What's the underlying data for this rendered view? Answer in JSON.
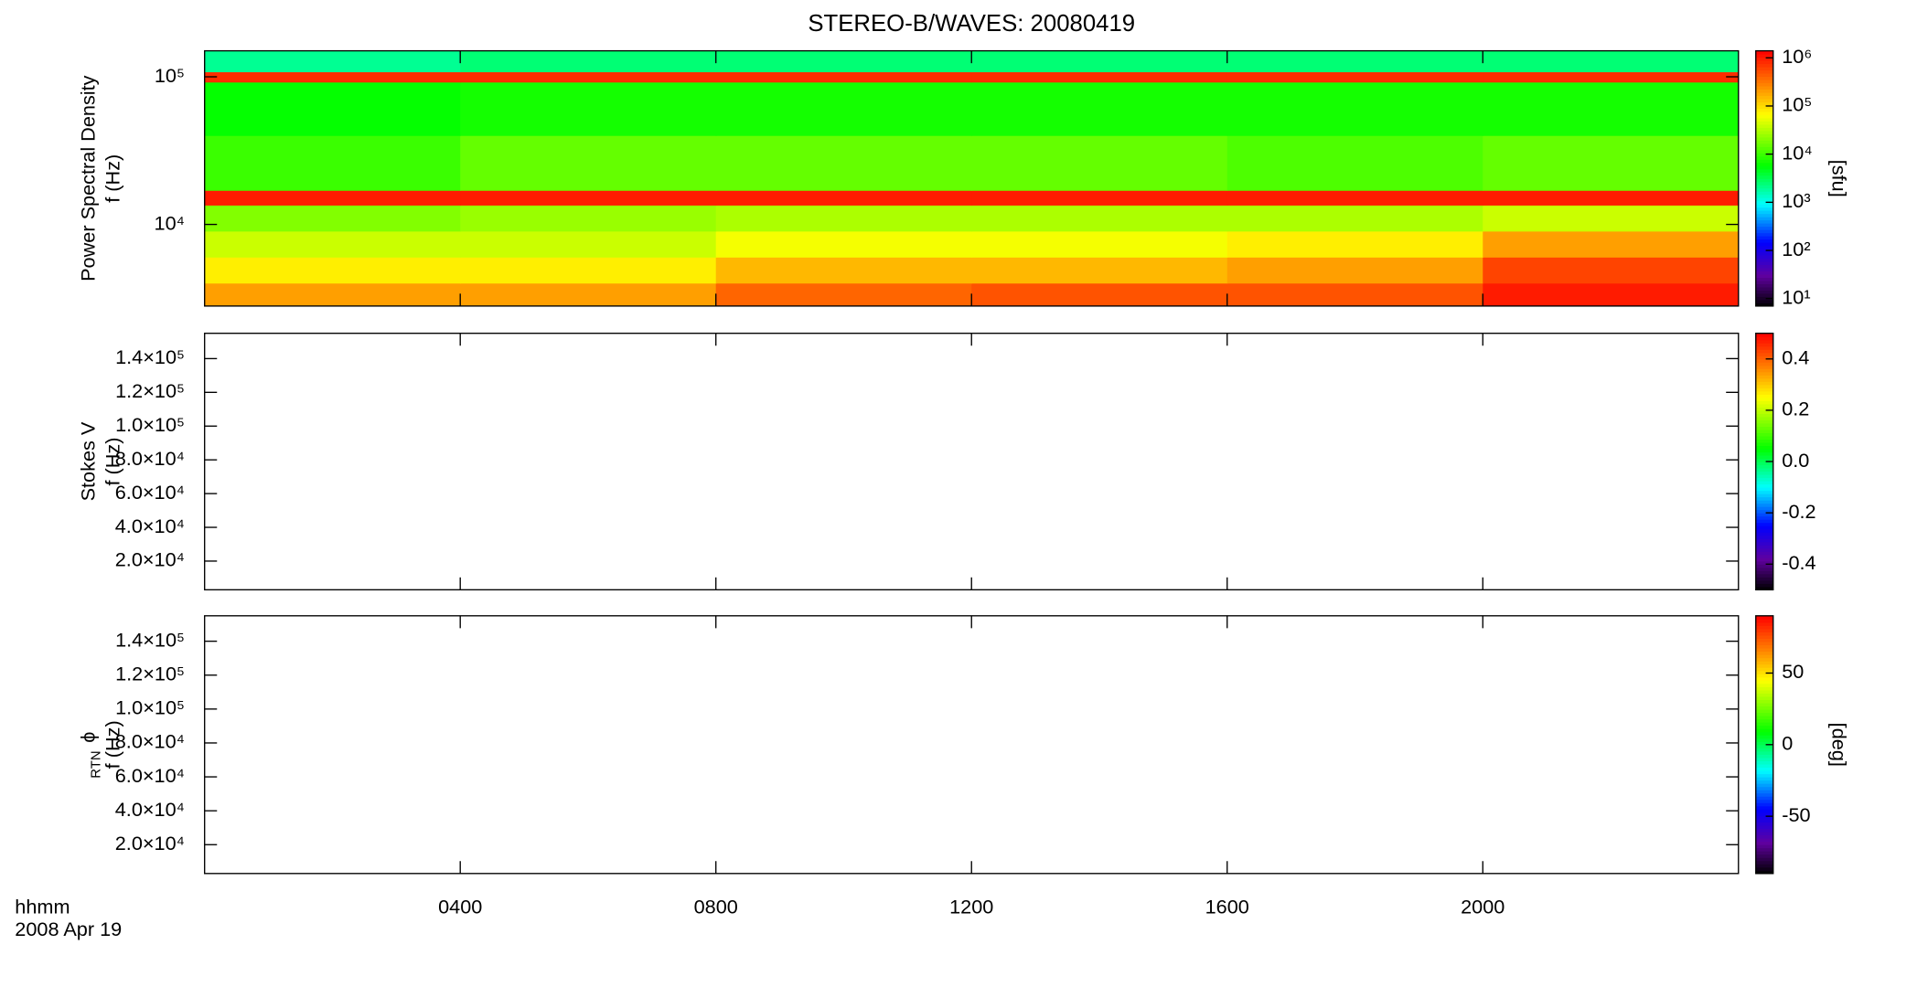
{
  "chart_data": [
    {
      "type": "heatmap",
      "title": "STEREO-B/WAVES: 20080419",
      "ylabel": [
        "Power Spectral Density",
        "f (Hz)"
      ],
      "xlim": [
        0,
        24
      ],
      "xticks": [
        4,
        8,
        12,
        16,
        20
      ],
      "ylog": true,
      "ylim": [
        2800,
        150000
      ],
      "yticks": [
        {
          "value": 10000,
          "label": "10⁴"
        },
        {
          "value": 100000,
          "label": "10⁵"
        }
      ],
      "x_edges": [
        0,
        4,
        8,
        12,
        16,
        20,
        24
      ],
      "y_edges": [
        2800,
        4000,
        6000,
        9000,
        13500,
        17000,
        40000,
        92000,
        108000,
        150000
      ],
      "z": [
        [
          200000,
          200000,
          400000,
          500000,
          500000,
          1000000
        ],
        [
          80000,
          80000,
          150000,
          150000,
          200000,
          600000
        ],
        [
          40000,
          40000,
          60000,
          60000,
          80000,
          200000
        ],
        [
          20000,
          25000,
          30000,
          30000,
          30000,
          40000
        ],
        [
          1000000,
          1000000,
          1000000,
          1000000,
          1000000,
          1000000
        ],
        [
          10000,
          15000,
          15000,
          15000,
          12000,
          15000
        ],
        [
          6000,
          7000,
          7000,
          7000,
          7000,
          7000
        ],
        [
          800000,
          800000,
          800000,
          800000,
          800000,
          800000
        ],
        [
          2000,
          2500,
          2500,
          2500,
          2500,
          2500
        ]
      ],
      "zlog": true,
      "zlim": [
        7,
        1400000
      ],
      "zticks": [
        {
          "value": 10,
          "label": "10¹"
        },
        {
          "value": 100,
          "label": "10²"
        },
        {
          "value": 1000,
          "label": "10³"
        },
        {
          "value": 10000,
          "label": "10⁴"
        },
        {
          "value": 100000,
          "label": "10⁵"
        },
        {
          "value": 1000000,
          "label": "10⁶"
        }
      ],
      "zlabel": "[sfu]",
      "colormap": "rainbow"
    },
    {
      "type": "heatmap",
      "ylabel": [
        "Stokes V",
        "f (Hz)"
      ],
      "xlim": [
        0,
        24
      ],
      "xticks": [
        4,
        8,
        12,
        16,
        20
      ],
      "ylim": [
        3000,
        155000
      ],
      "yticks": [
        {
          "value": 20000,
          "label": "2.0×10⁴"
        },
        {
          "value": 40000,
          "label": "4.0×10⁴"
        },
        {
          "value": 60000,
          "label": "6.0×10⁴"
        },
        {
          "value": 80000,
          "label": "8.0×10⁴"
        },
        {
          "value": 100000,
          "label": "1.0×10⁵"
        },
        {
          "value": 120000,
          "label": "1.2×10⁵"
        },
        {
          "value": 140000,
          "label": "1.4×10⁵"
        }
      ],
      "zlim": [
        -0.5,
        0.5
      ],
      "zticks": [
        -0.4,
        -0.2,
        {
          "value": 0,
          "label": "0.0"
        },
        0.2,
        0.4
      ],
      "colormap": "rainbow"
    },
    {
      "type": "heatmap",
      "ylabel_symbol": "ϕ",
      "ylabel_subscript": "RTN",
      "ylabel": [
        "f (Hz)"
      ],
      "xlim": [
        0,
        24
      ],
      "xticks": [
        {
          "value": 4,
          "label": "0400"
        },
        {
          "value": 8,
          "label": "0800"
        },
        {
          "value": 12,
          "label": "1200"
        },
        {
          "value": 16,
          "label": "1600"
        },
        {
          "value": 20,
          "label": "2000"
        }
      ],
      "xlabel": [
        "hhmm",
        "2008 Apr 19"
      ],
      "ylim": [
        3000,
        155000
      ],
      "yticks": [
        {
          "value": 20000,
          "label": "2.0×10⁴"
        },
        {
          "value": 40000,
          "label": "4.0×10⁴"
        },
        {
          "value": 60000,
          "label": "6.0×10⁴"
        },
        {
          "value": 80000,
          "label": "8.0×10⁴"
        },
        {
          "value": 100000,
          "label": "1.0×10⁵"
        },
        {
          "value": 120000,
          "label": "1.2×10⁵"
        },
        {
          "value": 140000,
          "label": "1.4×10⁵"
        }
      ],
      "zlim": [
        -90,
        90
      ],
      "zticks": [
        -50,
        0,
        50
      ],
      "zlabel": "[deg]",
      "colormap": "rainbow"
    }
  ]
}
